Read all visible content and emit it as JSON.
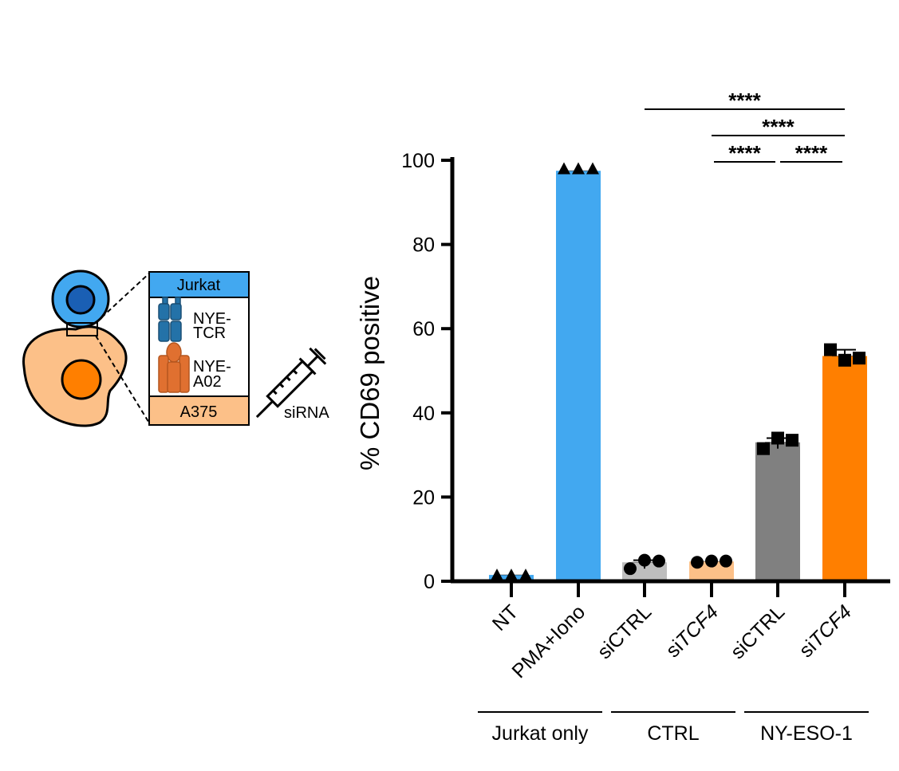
{
  "colors": {
    "jurkat_blue": "#42a8f0",
    "dark_blue": "#1a5fb4",
    "peach": "#fcc088",
    "orange": "#ff7f00",
    "light_gray": "#bebebe",
    "dark_gray": "#808080",
    "tcr_blue": "#2472a8",
    "hla_orange": "#e07030"
  },
  "schematic": {
    "top_label": "Jurkat",
    "receptor_1": [
      "NYE-",
      "TCR"
    ],
    "receptor_2": [
      "NYE-",
      "A02"
    ],
    "bottom_label": "A375",
    "syringe_label": "siRNA",
    "icons": [
      "jurkat-cell-icon",
      "a375-cell-icon",
      "syringe-icon"
    ]
  },
  "chart_data": {
    "type": "bar",
    "ylabel": "% CD69 positive",
    "ylim": [
      0,
      100
    ],
    "yticks": [
      0,
      20,
      40,
      60,
      80,
      100
    ],
    "categories": [
      {
        "parts": [
          {
            "t": "NT",
            "i": false
          }
        ],
        "group": "Jurkat only",
        "value": 1.5,
        "color": "#42a8f0",
        "marker": "triangle",
        "points": [
          1.5,
          1.5,
          1.5
        ]
      },
      {
        "parts": [
          {
            "t": "PMA+Iono",
            "i": false
          }
        ],
        "group": "Jurkat only",
        "value": 97.5,
        "color": "#42a8f0",
        "marker": "triangle",
        "points": [
          98,
          98,
          98
        ]
      },
      {
        "parts": [
          {
            "t": "siCTRL",
            "i": false
          }
        ],
        "group": "CTRL",
        "value": 4.5,
        "color": "#bebebe",
        "marker": "circle",
        "points": [
          3,
          5,
          4.8
        ]
      },
      {
        "parts": [
          {
            "t": "si",
            "i": false
          },
          {
            "t": "TCF4",
            "i": true
          }
        ],
        "group": "CTRL",
        "value": 4.7,
        "color": "#fcc088",
        "marker": "circle",
        "points": [
          4.5,
          4.8,
          4.8
        ]
      },
      {
        "parts": [
          {
            "t": "siCTRL",
            "i": false
          }
        ],
        "group": "NY-ESO-1",
        "value": 33,
        "color": "#808080",
        "marker": "square",
        "points": [
          31.5,
          34,
          33.5
        ]
      },
      {
        "parts": [
          {
            "t": "si",
            "i": false
          },
          {
            "t": "TCF4",
            "i": true
          }
        ],
        "group": "NY-ESO-1",
        "value": 53.5,
        "color": "#ff7f00",
        "marker": "square",
        "points": [
          55,
          52.5,
          53
        ]
      }
    ],
    "groups": [
      {
        "name": "Jurkat only",
        "from": 0,
        "to": 1
      },
      {
        "name": "CTRL",
        "from": 2,
        "to": 3
      },
      {
        "name": "NY-ESO-1",
        "from": 4,
        "to": 5
      }
    ],
    "significance": [
      {
        "from": 2,
        "to": 5,
        "label": "****",
        "level": 3
      },
      {
        "from": 3,
        "to": 5,
        "label": "****",
        "level": 2
      },
      {
        "from": 3,
        "to": 4,
        "label": "****",
        "level": 1
      },
      {
        "from": 4,
        "to": 5,
        "label": "****",
        "level": 1
      }
    ]
  }
}
